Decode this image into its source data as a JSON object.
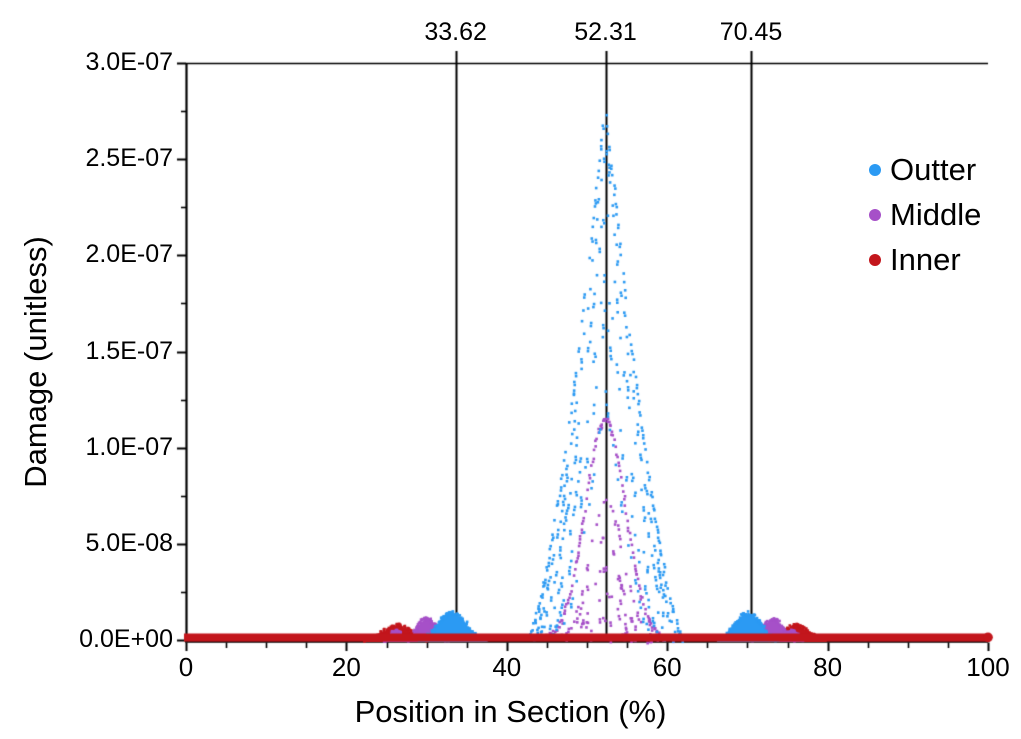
{
  "figure": {
    "background": "#ffffff",
    "text_color": "#000000",
    "frame_color": "#000000"
  },
  "chart_data": {
    "type": "scatter",
    "title": "",
    "xlabel": "Position in Section (%)",
    "ylabel": "Damage (unitless)",
    "xlim": [
      0,
      100
    ],
    "ylim": [
      0,
      3e-07
    ],
    "grid": false,
    "x_ticks": {
      "major_values": [
        0,
        20,
        40,
        60,
        80,
        100
      ],
      "major_labels": [
        "0",
        "20",
        "40",
        "60",
        "80",
        "100"
      ],
      "minor_step": 5
    },
    "y_ticks": {
      "major_values": [
        0,
        5e-08,
        1e-07,
        1.5e-07,
        2e-07,
        2.5e-07,
        3e-07
      ],
      "major_labels": [
        "0.0E+00",
        "5.0E-08",
        "1.0E-07",
        "1.5E-07",
        "2.0E-07",
        "2.5E-07",
        "3.0E-07"
      ],
      "minor_step": 2.5e-08
    },
    "vline_annotations": [
      {
        "x": 33.62,
        "label": "33.62"
      },
      {
        "x": 52.31,
        "label": "52.31"
      },
      {
        "x": 70.45,
        "label": "70.45"
      }
    ],
    "legend": {
      "position": "inside-right",
      "entries": [
        {
          "label": "Outter",
          "color": "#2B9AF3"
        },
        {
          "label": "Middle",
          "color": "#A650C8"
        },
        {
          "label": "Inner",
          "color": "#C3161C"
        }
      ]
    },
    "series": [
      {
        "name": "Inner",
        "color": "#C3161C",
        "z": 0,
        "components": [
          {
            "type": "fill",
            "shape": "bump",
            "center": 26.3,
            "peak": 7.5e-09,
            "half_width": 4.2
          },
          {
            "type": "fill",
            "shape": "bump",
            "center": 76.0,
            "peak": 7.5e-09,
            "half_width": 3.9
          },
          {
            "type": "baseline",
            "from": 0,
            "to": 100,
            "thickness_value": 3.8e-09
          }
        ]
      },
      {
        "name": "Middle",
        "color": "#A650C8",
        "z": 1,
        "components": [
          {
            "type": "fill",
            "shape": "bump",
            "center": 26.2,
            "peak": 4.5e-09,
            "half_width": 1.5
          },
          {
            "type": "fill",
            "shape": "bump",
            "center": 75.6,
            "peak": 4.5e-09,
            "half_width": 1.5
          },
          {
            "type": "fill",
            "shape": "bump",
            "center": 30.0,
            "peak": 1.1e-08,
            "half_width": 2.8
          },
          {
            "type": "fill",
            "shape": "bump",
            "center": 73.2,
            "peak": 1.1e-08,
            "half_width": 2.9
          },
          {
            "type": "trace",
            "shape": "bell",
            "center": 52.31,
            "peak": 1.15e-07,
            "half_width": 7.4,
            "density": 0.85
          },
          {
            "type": "trace",
            "shape": "bell",
            "center": 52.45,
            "peak": 7.3e-08,
            "half_width": 6.2,
            "density": 0.3
          },
          {
            "type": "trace",
            "shape": "bell",
            "center": 52.2,
            "peak": 5.4e-08,
            "half_width": 5.6,
            "density": 0.27
          },
          {
            "type": "trace",
            "shape": "bell",
            "center": 52.3,
            "peak": 3.7e-08,
            "half_width": 5.0,
            "density": 0.25
          },
          {
            "type": "trace",
            "shape": "bell",
            "center": 52.3,
            "peak": 2.4e-08,
            "half_width": 4.6,
            "density": 0.24
          },
          {
            "type": "trace",
            "shape": "bell",
            "center": 52.3,
            "peak": 1.1e-08,
            "half_width": 4.2,
            "density": 0.2
          },
          {
            "type": "trace",
            "shape": "flat",
            "center": 52.3,
            "peak": 1.5e-09,
            "half_width": 8.6,
            "density": 0.22
          }
        ]
      },
      {
        "name": "Outter",
        "color": "#2B9AF3",
        "z": 2,
        "components": [
          {
            "type": "fill",
            "shape": "bump",
            "center": 33.2,
            "peak": 1.4e-08,
            "half_width": 4.3
          },
          {
            "type": "fill",
            "shape": "bump",
            "center": 70.1,
            "peak": 1.4e-08,
            "half_width": 3.9
          },
          {
            "type": "trace",
            "shape": "spike",
            "center": 52.31,
            "peak": 2.78e-07,
            "half_width": 9.9,
            "density": 0.8
          },
          {
            "type": "trace",
            "shape": "spike",
            "center": 52.31,
            "peak": 2.6e-07,
            "half_width": 9.2,
            "density": 0.55
          },
          {
            "type": "trace",
            "shape": "spike",
            "center": 52.31,
            "peak": 2.3e-07,
            "half_width": 8.6,
            "density": 0.45
          },
          {
            "type": "trace",
            "shape": "spike",
            "center": 52.31,
            "peak": 1.95e-07,
            "half_width": 7.8,
            "density": 0.35
          },
          {
            "type": "trace",
            "shape": "spike",
            "center": 52.31,
            "peak": 1.72e-07,
            "half_width": 7.0,
            "density": 0.35
          },
          {
            "type": "trace",
            "shape": "spike",
            "center": 52.31,
            "peak": 1.3e-07,
            "half_width": 6.0,
            "density": 0.3
          }
        ]
      }
    ]
  }
}
